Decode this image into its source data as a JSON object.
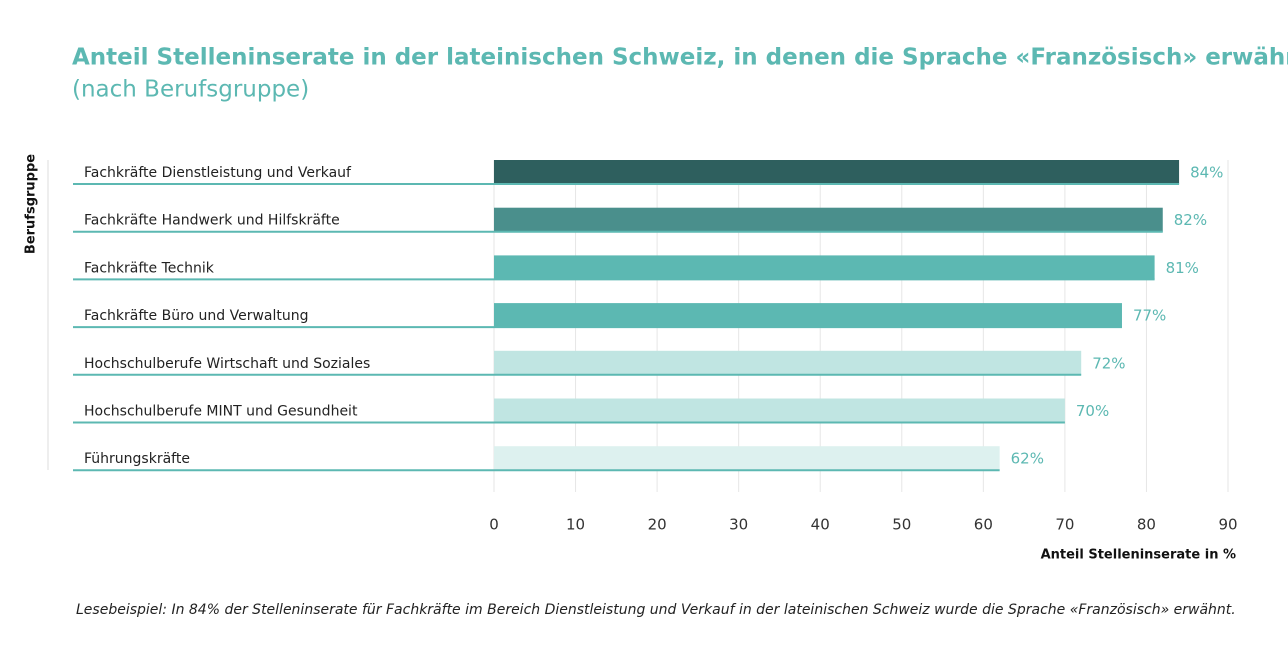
{
  "chart_data": {
    "type": "barh",
    "title": "Anteil Stelleninserate in der lateinischen Schweiz, in denen die Sprache «Französisch» erwähnt wurde",
    "subtitle": "(nach Berufsgruppe)",
    "y_label": "Berufsgruppe",
    "x_label": "Anteil Stelleninserate in %",
    "note": "Lesebeispiel: In 84% der Stelleninserate für Fachkräfte im Bereich Dienstleistung und Verkauf in der lateinischen Schweiz wurde die Sprache «Französisch» erwähnt.",
    "categories": [
      "Fachkräfte Dienstleistung und Verkauf",
      "Fachkräfte Handwerk und Hilfskräfte",
      "Fachkräfte Technik",
      "Fachkräfte Büro und Verwaltung",
      "Hochschulberufe Wirtschaft und Soziales",
      "Hochschulberufe MINT und Gesundheit",
      "Führungskräfte"
    ],
    "values": [
      84,
      82,
      81,
      77,
      72,
      70,
      62
    ],
    "value_labels": [
      "84%",
      "82%",
      "81%",
      "77%",
      "72%",
      "70%",
      "62%"
    ],
    "colors": [
      "#2e5f5e",
      "#4a8f8c",
      "#5cb8b2",
      "#5cb8b2",
      "#c0e5e2",
      "#c0e5e2",
      "#ddf1ef"
    ],
    "xlim": [
      0,
      90
    ],
    "xticks": [
      0,
      10,
      20,
      30,
      40,
      50,
      60,
      70,
      80,
      90
    ],
    "grid": true
  }
}
